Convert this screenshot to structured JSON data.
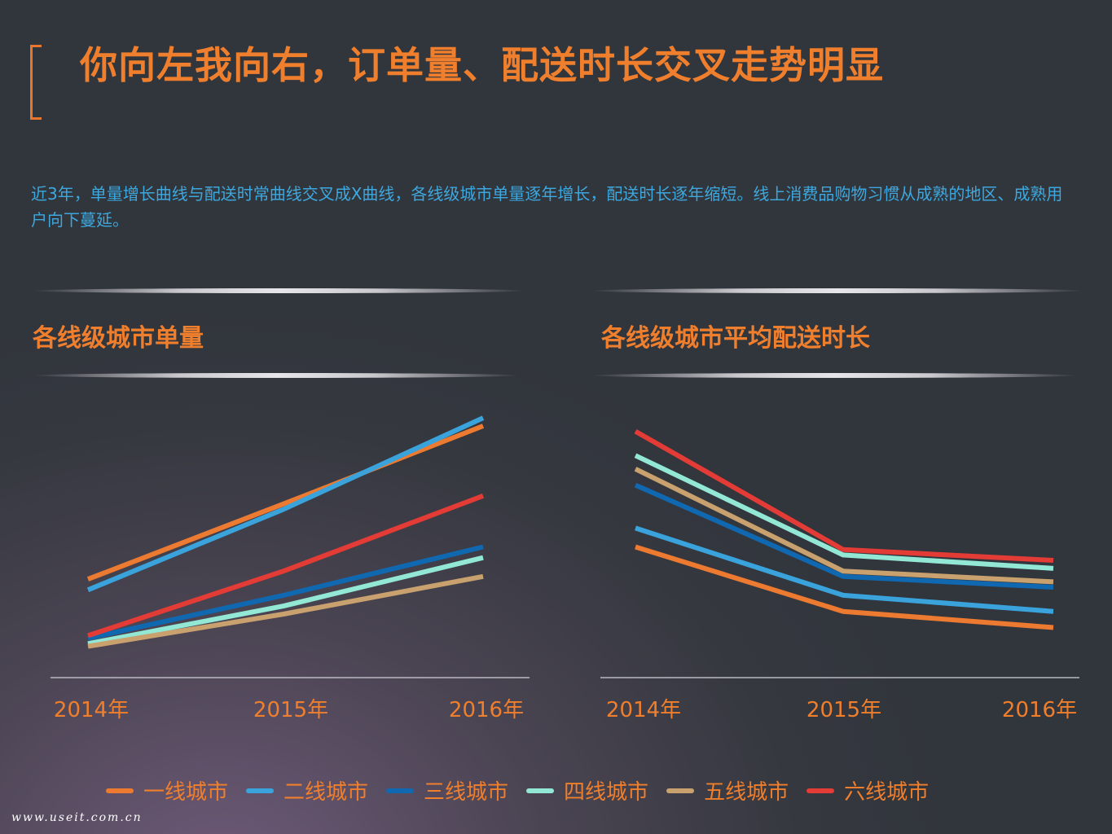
{
  "title": "你向左我向右，订单量、配送时长交叉走势明显",
  "description": "近3年，单量增长曲线与配送时常曲线交叉成X曲线，各线级城市单量逐年增长，配送时长逐年缩短。线上消费品购物习惯从成熟的地区、成熟用户向下蔓延。",
  "watermark": "www.useit.com.cn",
  "colors": {
    "accent": "#f07f2d",
    "text_blue": "#3ea8de"
  },
  "chart_data": [
    {
      "type": "line",
      "title": "各线级城市单量",
      "categories": [
        "2014年",
        "2015年",
        "2016年"
      ],
      "ylim": [
        0,
        100
      ],
      "grid": false,
      "series": [
        {
          "name": "一线城市",
          "color": "#ec7a30",
          "values": [
            33,
            61,
            90
          ]
        },
        {
          "name": "二线城市",
          "color": "#3aa3dc",
          "values": [
            29,
            59,
            93
          ]
        },
        {
          "name": "三线城市",
          "color": "#1068b0",
          "values": [
            11,
            27,
            45
          ]
        },
        {
          "name": "四线城市",
          "color": "#92e8d4",
          "values": [
            9,
            23,
            41
          ]
        },
        {
          "name": "五线城市",
          "color": "#c8a16e",
          "values": [
            8,
            20,
            34
          ]
        },
        {
          "name": "六线城市",
          "color": "#e33b35",
          "values": [
            12,
            36,
            64
          ]
        }
      ]
    },
    {
      "type": "line",
      "title": "各线级城市平均配送时长",
      "categories": [
        "2014年",
        "2015年",
        "2016年"
      ],
      "ylim": [
        0,
        100
      ],
      "grid": false,
      "series": [
        {
          "name": "一线城市",
          "color": "#ec7a30",
          "values": [
            45,
            21,
            15
          ]
        },
        {
          "name": "二线城市",
          "color": "#3aa3dc",
          "values": [
            52,
            27,
            21
          ]
        },
        {
          "name": "三线城市",
          "color": "#1068b0",
          "values": [
            68,
            34,
            30
          ]
        },
        {
          "name": "四线城市",
          "color": "#92e8d4",
          "values": [
            79,
            42,
            37
          ]
        },
        {
          "name": "五线城市",
          "color": "#c8a16e",
          "values": [
            74,
            36,
            32
          ]
        },
        {
          "name": "六线城市",
          "color": "#e33b35",
          "values": [
            88,
            44,
            40
          ]
        }
      ]
    }
  ]
}
